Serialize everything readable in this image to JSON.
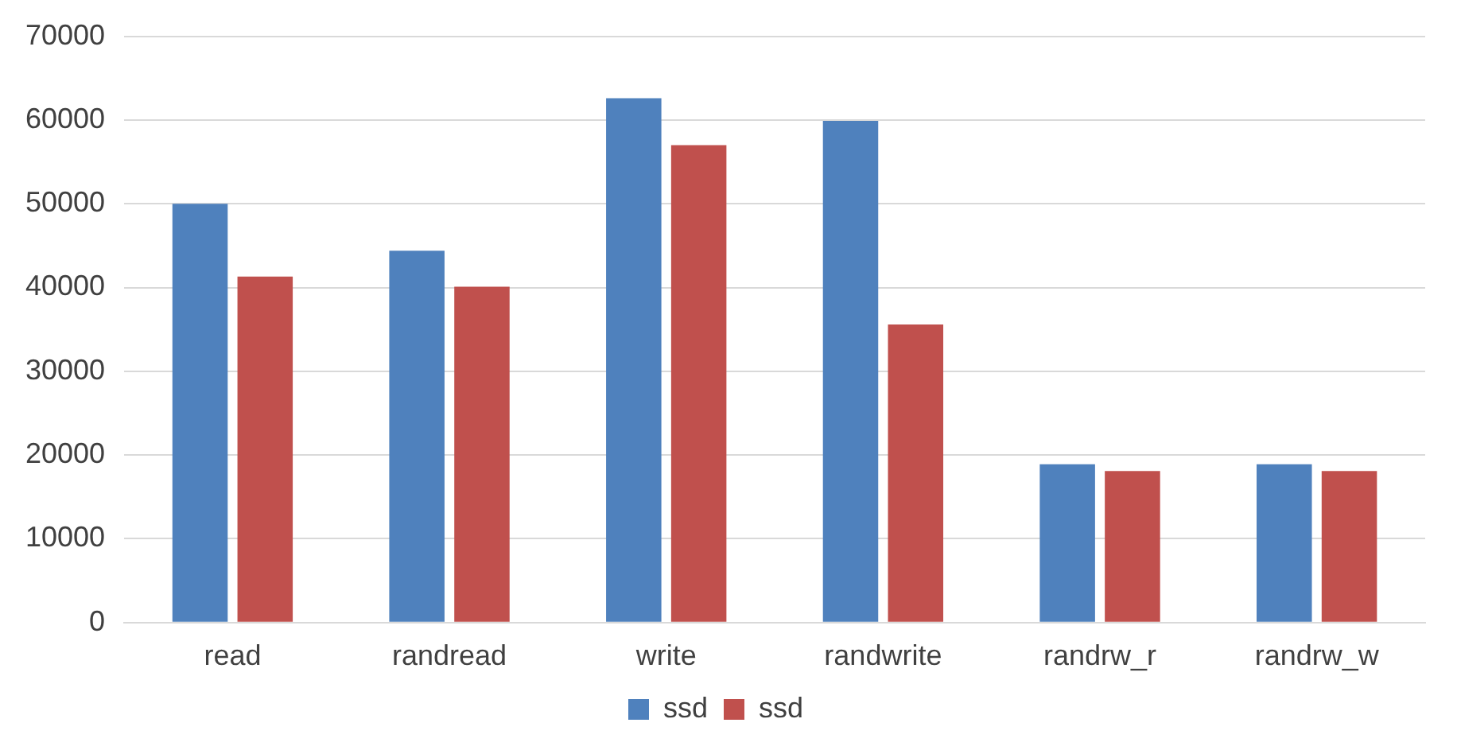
{
  "chart_data": {
    "type": "bar",
    "categories": [
      "read",
      "randread",
      "write",
      "randwrite",
      "randrw_r",
      "randrw_w"
    ],
    "series": [
      {
        "name": "ssd",
        "color": "#4f81bd",
        "values": [
          50000,
          44400,
          62600,
          59900,
          18900,
          18900
        ]
      },
      {
        "name": "ssd",
        "color": "#c0504d",
        "values": [
          41300,
          40100,
          57000,
          35600,
          18100,
          18100
        ]
      }
    ],
    "ylim": [
      0,
      70000
    ],
    "yticks": [
      0,
      10000,
      20000,
      30000,
      40000,
      50000,
      60000,
      70000
    ],
    "grid": "y",
    "legend": "bottom"
  }
}
